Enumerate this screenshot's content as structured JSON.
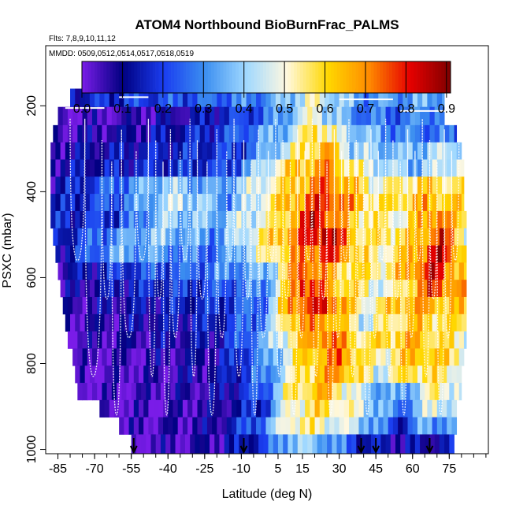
{
  "chart_data": {
    "type": "heatmap",
    "title": "ATOM4 Northbound BioBurnFrac_PALMS",
    "subtitle_flights": "Flts: 7,8,9,10,11,12",
    "subtitle_dates": "MMDD: 0509,0512,0514,0517,0518,0519",
    "xlabel": "Latitude (deg N)",
    "ylabel": "PSXC (mbar)",
    "xlim": [
      -90,
      91
    ],
    "ylim": [
      1010,
      60
    ],
    "x_tick_values": [
      -85,
      -70,
      -55,
      -40,
      -25,
      -10,
      5,
      15,
      30,
      45,
      60,
      75
    ],
    "x_tick_labels": [
      "-85",
      "-70",
      "-55",
      "-40",
      "-25",
      "-10",
      "5",
      "15",
      "30",
      "45",
      "60",
      "75"
    ],
    "y_tick_values": [
      200,
      400,
      600,
      800,
      1000
    ],
    "y_tick_labels": [
      "200",
      "400",
      "600",
      "800",
      "1000"
    ],
    "colorbar": {
      "ticks": [
        0.0,
        0.1,
        0.2,
        0.3,
        0.4,
        0.5,
        0.6,
        0.7,
        0.8,
        0.9
      ],
      "tick_labels": [
        "0.0",
        "0.1",
        "0.2",
        "0.3",
        "0.4",
        "0.5",
        "0.6",
        "0.7",
        "0.8",
        "0.9"
      ],
      "range": [
        0,
        0.91
      ],
      "colors": [
        "#7a1ce8",
        "#000080",
        "#1a3df0",
        "#3b8ef0",
        "#9fd8ff",
        "#fff8e0",
        "#ffd800",
        "#ff8c00",
        "#e60000",
        "#800000"
      ]
    },
    "arrow_latitudes": [
      -54,
      -9,
      39,
      45,
      67
    ],
    "pressure_levels": [
      180,
      225,
      265,
      305,
      345,
      385,
      425,
      465,
      505,
      545,
      585,
      625,
      665,
      705,
      745,
      785,
      825,
      865,
      905,
      945,
      985
    ],
    "rows": [
      {
        "p": 180,
        "lat0": -80,
        "lat1": 73,
        "knots": [
          [
            -80,
            0.15
          ],
          [
            -40,
            0.22
          ],
          [
            0,
            0.3
          ],
          [
            20,
            0.5
          ],
          [
            40,
            0.3
          ],
          [
            73,
            0.35
          ]
        ]
      },
      {
        "p": 225,
        "lat0": -85,
        "lat1": 73,
        "knots": [
          [
            -85,
            0.02
          ],
          [
            -55,
            0.05
          ],
          [
            -30,
            0.1
          ],
          [
            0,
            0.25
          ],
          [
            20,
            0.5
          ],
          [
            35,
            0.3
          ],
          [
            50,
            0.25
          ],
          [
            73,
            0.32
          ]
        ]
      },
      {
        "p": 265,
        "lat0": -87,
        "lat1": 78,
        "knots": [
          [
            -87,
            0.05
          ],
          [
            -50,
            0.1
          ],
          [
            -20,
            0.18
          ],
          [
            10,
            0.4
          ],
          [
            20,
            0.62
          ],
          [
            30,
            0.45
          ],
          [
            50,
            0.3
          ],
          [
            78,
            0.25
          ]
        ]
      },
      {
        "p": 305,
        "lat0": -88,
        "lat1": 80,
        "knots": [
          [
            -88,
            0.08
          ],
          [
            -45,
            0.15
          ],
          [
            -10,
            0.2
          ],
          [
            15,
            0.55
          ],
          [
            25,
            0.68
          ],
          [
            35,
            0.42
          ],
          [
            55,
            0.35
          ],
          [
            80,
            0.45
          ]
        ]
      },
      {
        "p": 345,
        "lat0": -88,
        "lat1": 81,
        "knots": [
          [
            -88,
            0.1
          ],
          [
            -50,
            0.16
          ],
          [
            -15,
            0.2
          ],
          [
            10,
            0.6
          ],
          [
            25,
            0.7
          ],
          [
            40,
            0.48
          ],
          [
            60,
            0.35
          ],
          [
            81,
            0.5
          ]
        ]
      },
      {
        "p": 385,
        "lat0": -88,
        "lat1": 81,
        "knots": [
          [
            -88,
            0.1
          ],
          [
            -55,
            0.3
          ],
          [
            -40,
            0.4
          ],
          [
            -20,
            0.3
          ],
          [
            5,
            0.55
          ],
          [
            25,
            0.75
          ],
          [
            45,
            0.5
          ],
          [
            65,
            0.6
          ],
          [
            81,
            0.55
          ]
        ]
      },
      {
        "p": 425,
        "lat0": -88,
        "lat1": 81,
        "knots": [
          [
            -88,
            0.12
          ],
          [
            -60,
            0.25
          ],
          [
            -35,
            0.45
          ],
          [
            -15,
            0.3
          ],
          [
            5,
            0.6
          ],
          [
            25,
            0.8
          ],
          [
            45,
            0.55
          ],
          [
            65,
            0.65
          ],
          [
            81,
            0.6
          ]
        ]
      },
      {
        "p": 465,
        "lat0": -88,
        "lat1": 82,
        "knots": [
          [
            -88,
            0.15
          ],
          [
            -60,
            0.2
          ],
          [
            -40,
            0.4
          ],
          [
            -20,
            0.35
          ],
          [
            5,
            0.55
          ],
          [
            20,
            0.85
          ],
          [
            35,
            0.6
          ],
          [
            55,
            0.5
          ],
          [
            70,
            0.75
          ],
          [
            82,
            0.55
          ]
        ]
      },
      {
        "p": 505,
        "lat0": -87,
        "lat1": 82,
        "knots": [
          [
            -87,
            0.12
          ],
          [
            -65,
            0.28
          ],
          [
            -45,
            0.38
          ],
          [
            -20,
            0.3
          ],
          [
            10,
            0.7
          ],
          [
            25,
            0.88
          ],
          [
            40,
            0.55
          ],
          [
            60,
            0.6
          ],
          [
            72,
            0.8
          ],
          [
            82,
            0.5
          ]
        ]
      },
      {
        "p": 545,
        "lat0": -86,
        "lat1": 82,
        "knots": [
          [
            -86,
            0.1
          ],
          [
            -60,
            0.35
          ],
          [
            -40,
            0.3
          ],
          [
            -20,
            0.25
          ],
          [
            10,
            0.65
          ],
          [
            25,
            0.8
          ],
          [
            45,
            0.5
          ],
          [
            60,
            0.65
          ],
          [
            70,
            0.85
          ],
          [
            82,
            0.6
          ]
        ]
      },
      {
        "p": 585,
        "lat0": -85,
        "lat1": 82,
        "knots": [
          [
            -85,
            0.08
          ],
          [
            -55,
            0.2
          ],
          [
            -30,
            0.25
          ],
          [
            0,
            0.35
          ],
          [
            15,
            0.78
          ],
          [
            30,
            0.6
          ],
          [
            50,
            0.55
          ],
          [
            68,
            0.82
          ],
          [
            82,
            0.6
          ]
        ]
      },
      {
        "p": 625,
        "lat0": -84,
        "lat1": 82,
        "knots": [
          [
            -84,
            0.06
          ],
          [
            -55,
            0.15
          ],
          [
            -25,
            0.2
          ],
          [
            0,
            0.3
          ],
          [
            15,
            0.82
          ],
          [
            30,
            0.62
          ],
          [
            50,
            0.45
          ],
          [
            68,
            0.78
          ],
          [
            82,
            0.65
          ]
        ]
      },
      {
        "p": 665,
        "lat0": -83,
        "lat1": 82,
        "knots": [
          [
            -83,
            0.05
          ],
          [
            -50,
            0.12
          ],
          [
            -20,
            0.18
          ],
          [
            0,
            0.28
          ],
          [
            10,
            0.72
          ],
          [
            25,
            0.8
          ],
          [
            40,
            0.5
          ],
          [
            60,
            0.68
          ],
          [
            82,
            0.6
          ]
        ]
      },
      {
        "p": 705,
        "lat0": -82,
        "lat1": 82,
        "knots": [
          [
            -82,
            0.04
          ],
          [
            -50,
            0.1
          ],
          [
            -20,
            0.15
          ],
          [
            0,
            0.3
          ],
          [
            10,
            0.65
          ],
          [
            25,
            0.7
          ],
          [
            40,
            0.45
          ],
          [
            60,
            0.62
          ],
          [
            82,
            0.55
          ]
        ]
      },
      {
        "p": 745,
        "lat0": -81,
        "lat1": 82,
        "knots": [
          [
            -81,
            0.03
          ],
          [
            -50,
            0.08
          ],
          [
            -20,
            0.12
          ],
          [
            0,
            0.35
          ],
          [
            10,
            0.55
          ],
          [
            25,
            0.75
          ],
          [
            40,
            0.55
          ],
          [
            60,
            0.65
          ],
          [
            82,
            0.5
          ]
        ]
      },
      {
        "p": 785,
        "lat0": -79,
        "lat1": 81,
        "knots": [
          [
            -79,
            0.02
          ],
          [
            -50,
            0.05
          ],
          [
            -20,
            0.1
          ],
          [
            0,
            0.3
          ],
          [
            15,
            0.6
          ],
          [
            30,
            0.72
          ],
          [
            45,
            0.5
          ],
          [
            62,
            0.65
          ],
          [
            81,
            0.55
          ]
        ]
      },
      {
        "p": 825,
        "lat0": -78,
        "lat1": 80,
        "knots": [
          [
            -78,
            0.02
          ],
          [
            -50,
            0.04
          ],
          [
            -20,
            0.1
          ],
          [
            0,
            0.28
          ],
          [
            15,
            0.58
          ],
          [
            30,
            0.7
          ],
          [
            45,
            0.45
          ],
          [
            60,
            0.6
          ],
          [
            80,
            0.5
          ]
        ]
      },
      {
        "p": 865,
        "lat0": -77,
        "lat1": 80,
        "knots": [
          [
            -77,
            0.02
          ],
          [
            -50,
            0.04
          ],
          [
            -20,
            0.08
          ],
          [
            0,
            0.25
          ],
          [
            10,
            0.55
          ],
          [
            25,
            0.65
          ],
          [
            40,
            0.4
          ],
          [
            55,
            0.3
          ],
          [
            70,
            0.55
          ],
          [
            80,
            0.45
          ]
        ]
      },
      {
        "p": 905,
        "lat0": -68,
        "lat1": 78,
        "knots": [
          [
            -68,
            0.02
          ],
          [
            -45,
            0.03
          ],
          [
            -20,
            0.07
          ],
          [
            0,
            0.2
          ],
          [
            10,
            0.52
          ],
          [
            25,
            0.58
          ],
          [
            40,
            0.45
          ],
          [
            55,
            0.25
          ],
          [
            70,
            0.5
          ],
          [
            78,
            0.4
          ]
        ]
      },
      {
        "p": 945,
        "lat0": -60,
        "lat1": 78,
        "knots": [
          [
            -60,
            0.02
          ],
          [
            -40,
            0.05
          ],
          [
            -20,
            0.08
          ],
          [
            0,
            0.3
          ],
          [
            10,
            0.55
          ],
          [
            25,
            0.5
          ],
          [
            40,
            0.4
          ],
          [
            55,
            0.15
          ],
          [
            65,
            0.35
          ],
          [
            78,
            0.3
          ]
        ]
      },
      {
        "p": 985,
        "lat0": -55,
        "lat1": 77,
        "knots": [
          [
            -55,
            0.03
          ],
          [
            -30,
            0.05
          ],
          [
            -15,
            0.1
          ],
          [
            0,
            0.2
          ],
          [
            10,
            0.4
          ],
          [
            25,
            0.35
          ],
          [
            40,
            0.15
          ],
          [
            55,
            0.1
          ],
          [
            77,
            0.12
          ]
        ]
      }
    ]
  }
}
